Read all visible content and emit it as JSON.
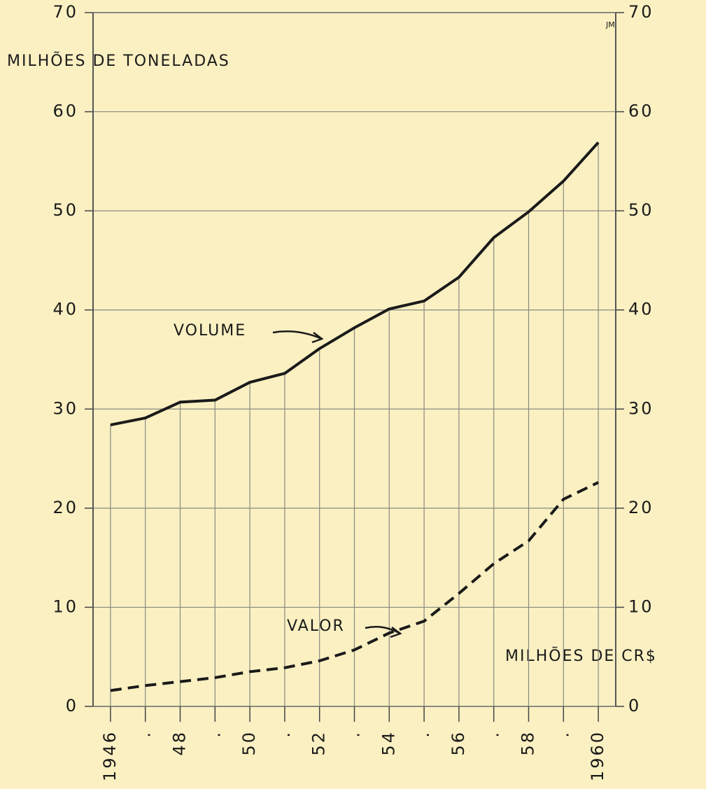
{
  "chart_data": {
    "type": "line",
    "ylabel": "MILHÕES DE TONELADAS",
    "y2label": "MILHÕES DE CR$",
    "signature": "JM",
    "x": [
      1946,
      1947,
      1948,
      1949,
      1950,
      1951,
      1952,
      1953,
      1954,
      1955,
      1956,
      1957,
      1958,
      1959,
      1960
    ],
    "xlim": [
      1945.5,
      1960.5
    ],
    "xticks": [
      {
        "value": 1946,
        "label": "1946"
      },
      {
        "value": 1947,
        "label": "."
      },
      {
        "value": 1948,
        "label": "48"
      },
      {
        "value": 1949,
        "label": "."
      },
      {
        "value": 1950,
        "label": "50"
      },
      {
        "value": 1951,
        "label": "."
      },
      {
        "value": 1952,
        "label": "52"
      },
      {
        "value": 1953,
        "label": "."
      },
      {
        "value": 1954,
        "label": "54"
      },
      {
        "value": 1955,
        "label": "."
      },
      {
        "value": 1956,
        "label": "56"
      },
      {
        "value": 1957,
        "label": "."
      },
      {
        "value": 1958,
        "label": "58"
      },
      {
        "value": 1959,
        "label": "."
      },
      {
        "value": 1960,
        "label": "1960"
      }
    ],
    "ylim": [
      0,
      70
    ],
    "yticks": [
      0,
      10,
      20,
      30,
      40,
      50,
      60,
      70
    ],
    "y2lim": [
      0,
      70
    ],
    "y2ticks": [
      0,
      10,
      20,
      30,
      40,
      50,
      60,
      70
    ],
    "grid": true,
    "series": [
      {
        "name": "VOLUME",
        "color": "#1a1a1a",
        "dash": false,
        "values": [
          28.4,
          29.1,
          30.7,
          30.9,
          32.7,
          33.6,
          36.1,
          38.2,
          40.1,
          40.9,
          43.3,
          47.3,
          49.9,
          53.0,
          56.9
        ]
      },
      {
        "name": "VALOR",
        "color": "#1a1a1a",
        "dash": true,
        "axis": "y2",
        "values": [
          1.6,
          2.1,
          2.5,
          2.9,
          3.5,
          3.9,
          4.6,
          5.7,
          7.4,
          8.6,
          11.4,
          14.4,
          16.7,
          20.9,
          22.6
        ]
      }
    ]
  }
}
